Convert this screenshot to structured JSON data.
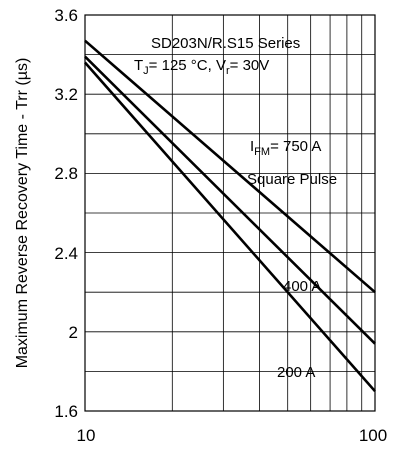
{
  "chart_data": {
    "type": "line",
    "x_scale": "log",
    "xlim": [
      10,
      100
    ],
    "ylim": [
      1.6,
      3.6
    ],
    "grid": true,
    "xlabel": "",
    "ylabel": "Maximum Reverse Recovery Time - Trr (µs)",
    "x_ticks": [
      "10",
      "100"
    ],
    "y_ticks": [
      "1.6",
      "2",
      "2.4",
      "2.8",
      "3.2",
      "3.6"
    ],
    "series": [
      {
        "name": "I FM = 750 A",
        "x": [
          10,
          100
        ],
        "y": [
          3.47,
          2.2
        ]
      },
      {
        "name": "400 A",
        "x": [
          10,
          100
        ],
        "y": [
          3.39,
          1.94
        ]
      },
      {
        "name": "200 A",
        "x": [
          10,
          100
        ],
        "y": [
          3.36,
          1.7
        ]
      }
    ],
    "annotations": {
      "series_name": "SD203N/R.S15 Series",
      "conditions": {
        "tj_prefix": "T",
        "tj_sub": "J",
        "tj_value": "= 125 °C, V",
        "vr_sub": "r",
        "vr_value": "= 30V"
      },
      "ifm": {
        "prefix": "I",
        "sub": "FM",
        "value": "= 750 A"
      },
      "pulse": "Square Pulse",
      "label_400": "400 A",
      "label_200": "200 A"
    }
  }
}
